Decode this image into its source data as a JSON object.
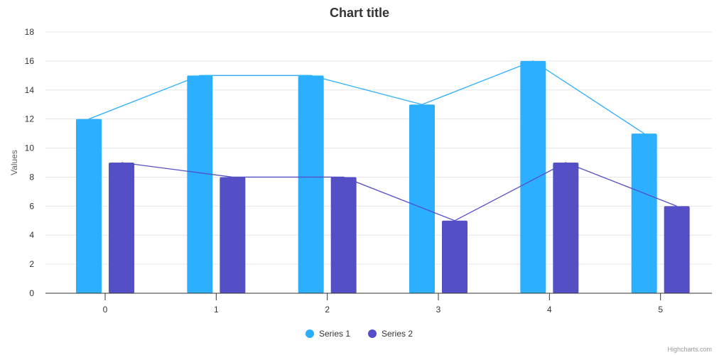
{
  "chart_data": {
    "type": "bar",
    "title": "Chart title",
    "xlabel": "",
    "ylabel": "Values",
    "categories": [
      "0",
      "1",
      "2",
      "3",
      "4",
      "5"
    ],
    "ylim": [
      0,
      18
    ],
    "yticks": [
      "0",
      "2",
      "4",
      "6",
      "8",
      "10",
      "12",
      "14",
      "16",
      "18"
    ],
    "grid": true,
    "legend_position": "bottom-center",
    "series": [
      {
        "name": "Series 1",
        "type": "column+line",
        "color": "#2caffe",
        "values": [
          12,
          15,
          15,
          13,
          16,
          11
        ]
      },
      {
        "name": "Series 2",
        "type": "column+line",
        "color": "#544fc5",
        "values": [
          9,
          8,
          8,
          5,
          9,
          6
        ]
      }
    ]
  },
  "credits": "Highcharts.com"
}
